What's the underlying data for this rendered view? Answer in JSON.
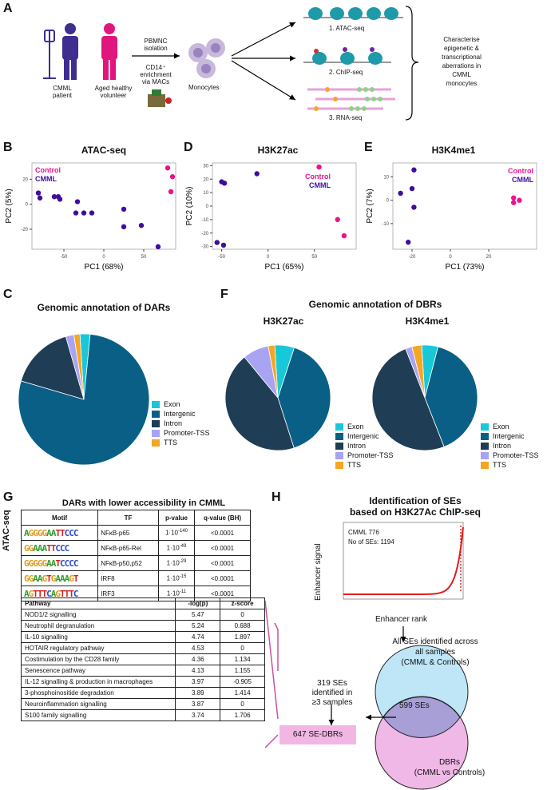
{
  "panelA": {
    "label": "A",
    "patient": "CMML\npatient",
    "volunteer": "Aged healthy\nvolunteer",
    "step1": "PBMNC\nisolation",
    "step2": "CD14⁺\nenrichment\nvia MACs",
    "monocytes": "Monocytes",
    "assay1": "1.  ATAC-seq",
    "assay2": "2. ChIP-seq",
    "assay3": "3. RNA-seq",
    "goal": "Characterise\nepigenetic &\ntranscriptional\naberrations in\nCMML\nmonocytes"
  },
  "colors": {
    "control": "#e8148e",
    "cmml": "#3f0d9e",
    "exon": "#18c8d8",
    "intergenic": "#0a5f86",
    "intron": "#1f3d55",
    "promoter": "#a8a4f2",
    "tts": "#f5a623",
    "venn_top": "#bfe6f7",
    "venn_bottom": "#f0b8e6",
    "venn_mid": "#a79fd6"
  },
  "panelB": {
    "label": "B",
    "title": "ATAC-seq",
    "xlabel": "PC1 (68%)",
    "ylabel": "PC2 (5%)",
    "legend": [
      "Control",
      "CMML"
    ]
  },
  "panelD": {
    "label": "D",
    "title": "H3K27ac",
    "xlabel": "PC1 (65%)",
    "ylabel": "PC2 (10%)",
    "legend": [
      "Control",
      "CMML"
    ]
  },
  "panelE": {
    "label": "E",
    "title": "H3K4me1",
    "xlabel": "PC1 (73%)",
    "ylabel": "PC2 (7%)",
    "legend": [
      "Control",
      "CMML"
    ]
  },
  "chart_data": [
    {
      "type": "scatter",
      "panel": "B",
      "xlim": [
        -90,
        90
      ],
      "ylim": [
        -36,
        33
      ],
      "xticks": [
        -50,
        0,
        50
      ],
      "yticks": [
        -20,
        0,
        20
      ],
      "series": [
        {
          "name": "Control",
          "points": [
            [
              80,
              29
            ],
            [
              86,
              22
            ],
            [
              84,
              10
            ]
          ]
        },
        {
          "name": "CMML",
          "points": [
            [
              -82,
              9
            ],
            [
              -80,
              5
            ],
            [
              -62,
              6
            ],
            [
              -57,
              6
            ],
            [
              -55,
              4
            ],
            [
              -33,
              2
            ],
            [
              -35,
              -7
            ],
            [
              -25,
              -7
            ],
            [
              -15,
              -7
            ],
            [
              25,
              -4
            ],
            [
              25,
              -18
            ],
            [
              47,
              -17
            ],
            [
              68,
              -34
            ]
          ]
        }
      ]
    },
    {
      "type": "scatter",
      "panel": "D",
      "xlim": [
        -60,
        95
      ],
      "ylim": [
        -32,
        32
      ],
      "xticks": [
        -50,
        0,
        50
      ],
      "yticks": [
        -30,
        -20,
        -10,
        0,
        10,
        20,
        30
      ],
      "series": [
        {
          "name": "Control",
          "points": [
            [
              55,
              29
            ],
            [
              75,
              -10
            ],
            [
              82,
              -22
            ]
          ]
        },
        {
          "name": "CMML",
          "points": [
            [
              -50,
              18
            ],
            [
              -47,
              17
            ],
            [
              -12,
              24
            ],
            [
              -55,
              -27
            ],
            [
              -48,
              -29
            ]
          ]
        }
      ]
    },
    {
      "type": "scatter",
      "panel": "E",
      "xlim": [
        -30,
        45
      ],
      "ylim": [
        -21,
        16
      ],
      "xticks": [
        -20,
        0,
        20
      ],
      "yticks": [
        -10,
        0,
        10
      ],
      "series": [
        {
          "name": "Control",
          "points": [
            [
              33,
              1
            ],
            [
              36,
              0
            ],
            [
              33,
              -1
            ]
          ]
        },
        {
          "name": "CMML",
          "points": [
            [
              -19,
              13
            ],
            [
              -26,
              3
            ],
            [
              -20,
              5
            ],
            [
              -19,
              -3
            ],
            [
              -22,
              -18
            ]
          ]
        }
      ]
    },
    {
      "type": "pie",
      "panel": "C",
      "labels": [
        "Exon",
        "Intergenic",
        "Intron",
        "Promoter-TSS",
        "TTS"
      ],
      "values": [
        2.5,
        78,
        16,
        2,
        1.5
      ]
    },
    {
      "type": "pie",
      "panel": "F-H3K27ac",
      "labels": [
        "Exon",
        "Intergenic",
        "Intron",
        "Promoter-TSS",
        "TTS"
      ],
      "values": [
        6,
        40,
        44,
        8,
        2
      ]
    },
    {
      "type": "pie",
      "panel": "F-H3K4me1",
      "labels": [
        "Exon",
        "Intergenic",
        "Intron",
        "Promoter-TSS",
        "TTS"
      ],
      "values": [
        5,
        40,
        50,
        2,
        3
      ]
    },
    {
      "type": "line",
      "panel": "H",
      "title": "CMML 776",
      "xlabel": "Enhancer rank",
      "ylabel": "Enhancer signal"
    }
  ],
  "panelC": {
    "label": "C",
    "title": "Genomic annotation of DARs"
  },
  "panelF": {
    "label": "F",
    "title": "Genomic annotation of DBRs",
    "sub1": "H3K27ac",
    "sub2": "H3K4me1"
  },
  "legendPie": [
    "Exon",
    "Intergenic",
    "Intron",
    "Promoter-TSS",
    "TTS"
  ],
  "panelG": {
    "label": "G",
    "title": "DARs with lower accessibility in CMML",
    "side": "ATAC-seq",
    "headers": [
      "Motif",
      "TF",
      "p-value",
      "q-value (BH)"
    ],
    "rows": [
      {
        "motif": "AGGGGAATTCCC",
        "tf": "NFκB-p65",
        "p": "1·10",
        "pe": "-140",
        "q": "<0.0001"
      },
      {
        "motif": "GGAAATTCCC",
        "tf": "NFκB-p65-Rel",
        "p": "1·10",
        "pe": "-49",
        "q": "<0.0001"
      },
      {
        "motif": "GGGGGAATCCCC",
        "tf": "NFκB-p50,p52",
        "p": "1·10",
        "pe": "-29",
        "q": "<0.0001"
      },
      {
        "motif": "GGAAGTGAAAGT",
        "tf": "IRF8",
        "p": "1·10",
        "pe": "-15",
        "q": "<0.0001"
      },
      {
        "motif": "AGTTTCAGTTTC",
        "tf": "IRF3",
        "p": "1·10",
        "pe": "-11",
        "q": "<0.0001"
      }
    ],
    "pathHeaders": [
      "Pathway",
      "-log(p)",
      "z-score"
    ],
    "pathways": [
      {
        "name": "NOD1/2 signalling",
        "logp": "5.47",
        "z": "0"
      },
      {
        "name": "Neutrophil degranulation",
        "logp": "5.24",
        "z": "0.688"
      },
      {
        "name": "IL-10 signalling",
        "logp": "4.74",
        "z": "1.897"
      },
      {
        "name": "HOTAIR regulatory pathway",
        "logp": "4.53",
        "z": "0"
      },
      {
        "name": "Costimulation by the CD28 family",
        "logp": "4.36",
        "z": "1.134"
      },
      {
        "name": "Senescence pathway",
        "logp": "4.13",
        "z": "1.155"
      },
      {
        "name": "IL-12 signalling & production in macrophages",
        "logp": "3.97",
        "z": "-0.905"
      },
      {
        "name": "3-phosphoinositide degradation",
        "logp": "3.89",
        "z": "1.414"
      },
      {
        "name": "Neuroinflammation signalling",
        "logp": "3.87",
        "z": "0"
      },
      {
        "name": "S100 family signalling",
        "logp": "3.74",
        "z": "1.706"
      }
    ]
  },
  "panelH": {
    "label": "H",
    "title": "Identification of SEs\nbased on H3K27Ac ChIP-seq",
    "inset1": "CMML 776",
    "inset2": "No of SEs: 1194",
    "ylabel": "Enhancer signal",
    "xlabel": "Enhancer rank",
    "allSEs": "All SEs identified across\nall samples\n(CMML & Controls)",
    "dbrs": "DBRs\n(CMML vs Controls)",
    "overlap": "599 SEs",
    "identified": "319 SEs\nidentified in\n≥3 samples",
    "result": "647 SE-DBRs"
  }
}
